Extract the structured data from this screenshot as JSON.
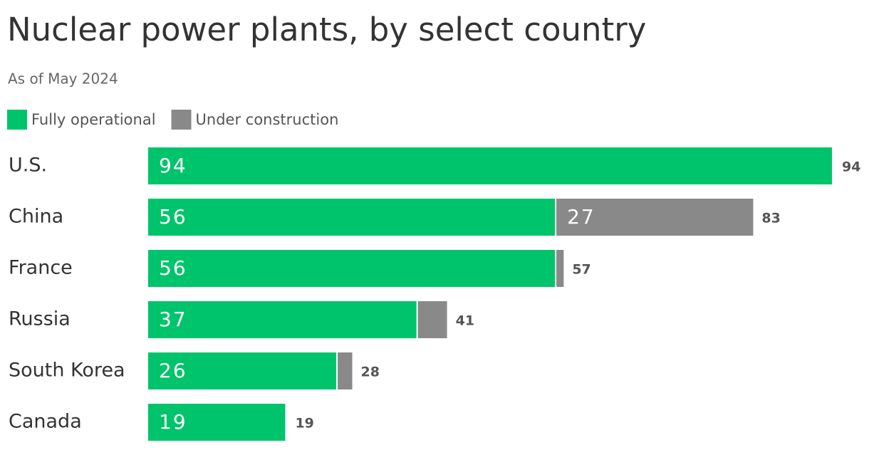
{
  "chart_data": {
    "type": "stacked-bar",
    "title": "Nuclear power plants, by select country",
    "subtitle": "As of May 2024",
    "categories": [
      "U.S.",
      "China",
      "France",
      "Russia",
      "South Korea",
      "Canada"
    ],
    "series": [
      {
        "name": "Fully operational",
        "color": "#00c46b",
        "values": [
          94,
          56,
          56,
          37,
          26,
          19
        ]
      },
      {
        "name": "Under construction",
        "color": "#898989",
        "values": [
          0,
          27,
          1,
          4,
          2,
          0
        ]
      }
    ],
    "totals": [
      94,
      83,
      57,
      41,
      28,
      19
    ]
  }
}
